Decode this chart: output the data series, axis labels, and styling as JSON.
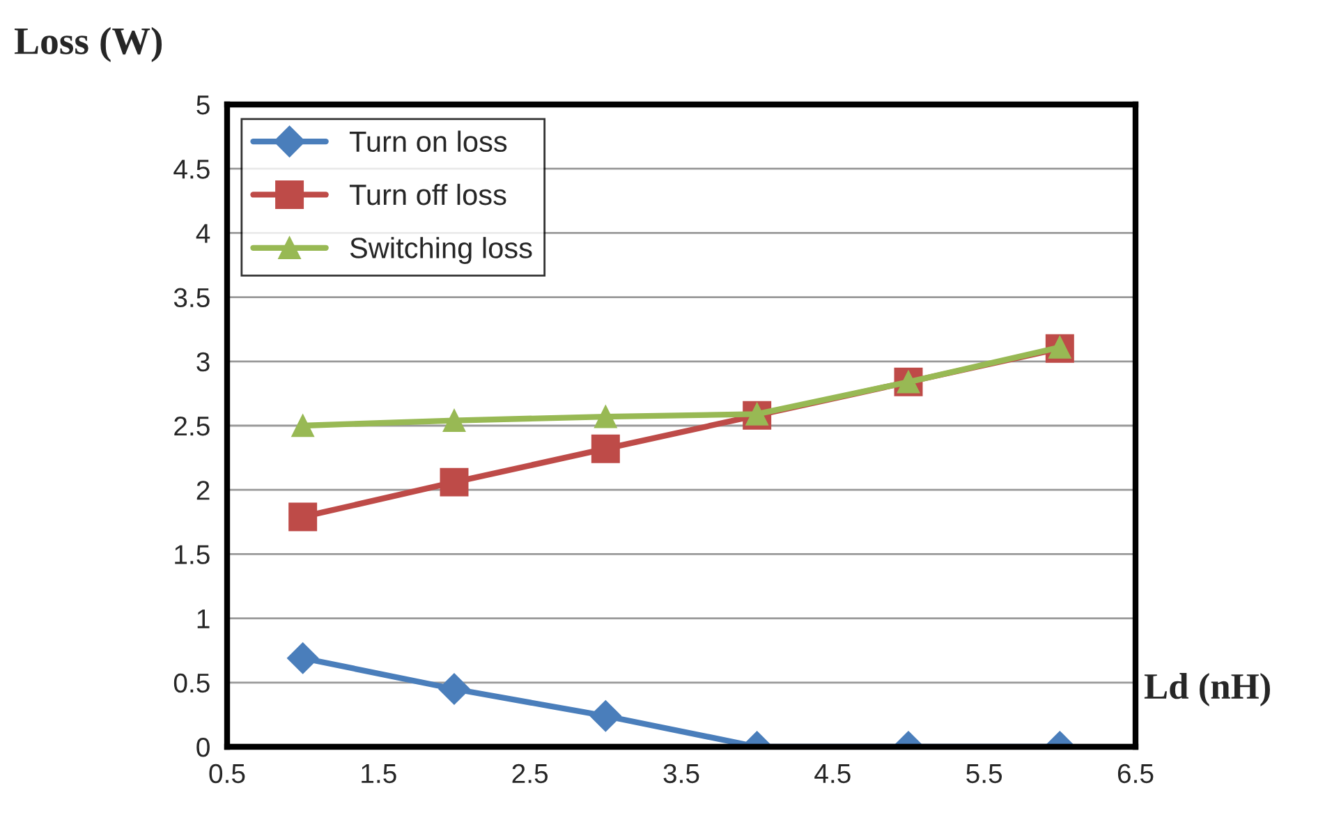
{
  "chart_data": {
    "type": "line",
    "xlabel": "Ld (nH)",
    "ylabel": "Loss (W)",
    "x": [
      1,
      2,
      3,
      4,
      5,
      6
    ],
    "series": [
      {
        "name": "Turn on loss",
        "color": "#4a7ebb",
        "marker": "diamond",
        "values": [
          0.69,
          0.45,
          0.24,
          0,
          0,
          0
        ]
      },
      {
        "name": "Turn off loss",
        "color": "#be4b48",
        "marker": "square",
        "values": [
          1.79,
          2.06,
          2.32,
          2.58,
          2.84,
          3.1
        ]
      },
      {
        "name": "Switching loss",
        "color": "#98b954",
        "marker": "triangle",
        "values": [
          2.5,
          2.54,
          2.57,
          2.59,
          2.84,
          3.11
        ]
      }
    ],
    "xlim": [
      0.5,
      6.5
    ],
    "xticks": [
      0.5,
      1.5,
      2.5,
      3.5,
      4.5,
      5.5,
      6.5
    ],
    "ylim": [
      0,
      5
    ],
    "yticks": [
      0,
      0.5,
      1,
      1.5,
      2,
      2.5,
      3,
      3.5,
      4,
      4.5,
      5
    ],
    "grid": "y",
    "legend": "top left"
  }
}
